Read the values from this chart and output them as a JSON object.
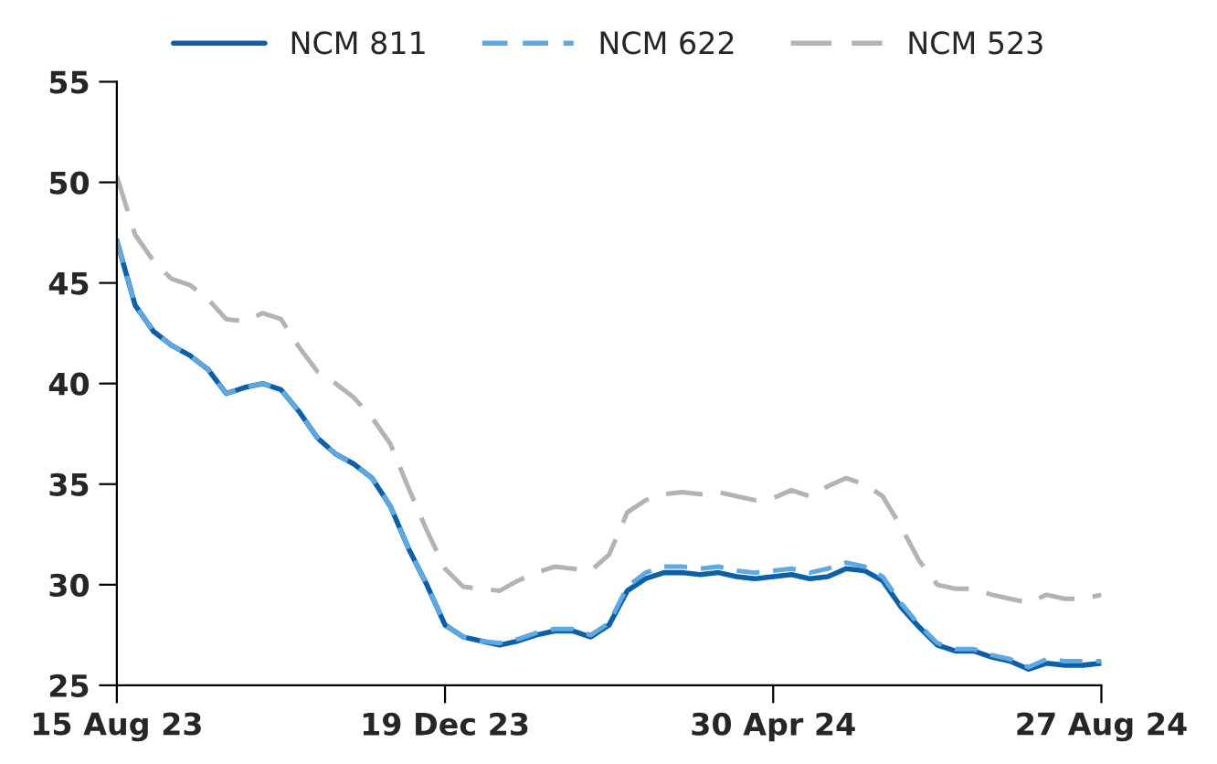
{
  "chart_data": {
    "type": "line",
    "categories": [
      "15 Aug 23",
      null,
      null,
      null,
      null,
      null,
      null,
      null,
      null,
      null,
      null,
      null,
      null,
      null,
      null,
      null,
      null,
      null,
      "19 Dec 23",
      null,
      null,
      null,
      null,
      null,
      null,
      null,
      null,
      null,
      null,
      null,
      null,
      null,
      null,
      null,
      null,
      null,
      "30 Apr 24",
      null,
      null,
      null,
      null,
      null,
      null,
      null,
      null,
      null,
      null,
      null,
      null,
      null,
      null,
      null,
      null,
      null,
      "27 Aug 24"
    ],
    "series": [
      {
        "name": "NCM 811",
        "color": "#0d5fa8",
        "line_style": "solid",
        "values": [
          47.1,
          43.9,
          42.6,
          41.9,
          41.4,
          40.7,
          39.5,
          39.8,
          40.0,
          39.7,
          38.6,
          37.3,
          36.5,
          36.0,
          35.3,
          33.9,
          31.8,
          30.0,
          28.0,
          27.4,
          27.2,
          27.0,
          27.2,
          27.5,
          27.7,
          27.7,
          27.4,
          28.0,
          29.7,
          30.3,
          30.6,
          30.6,
          30.5,
          30.6,
          30.4,
          30.3,
          30.4,
          30.5,
          30.3,
          30.4,
          30.8,
          30.7,
          30.2,
          28.9,
          27.9,
          27.0,
          26.7,
          26.7,
          26.4,
          26.2,
          25.8,
          26.1,
          26.0,
          26.0,
          26.1
        ]
      },
      {
        "name": "NCM 622",
        "color": "#5fa8e0",
        "line_style": "dashed",
        "values": [
          47.1,
          43.9,
          42.6,
          41.9,
          41.4,
          40.7,
          39.5,
          39.8,
          40.0,
          39.7,
          38.6,
          37.3,
          36.5,
          36.0,
          35.3,
          33.9,
          31.8,
          30.0,
          28.0,
          27.4,
          27.2,
          27.1,
          27.3,
          27.6,
          27.8,
          27.8,
          27.5,
          28.1,
          29.9,
          30.6,
          30.9,
          30.9,
          30.8,
          30.9,
          30.7,
          30.6,
          30.7,
          30.8,
          30.6,
          30.8,
          31.1,
          30.9,
          30.4,
          29.1,
          28.0,
          27.1,
          26.8,
          26.8,
          26.5,
          26.3,
          25.9,
          26.3,
          26.2,
          26.2,
          26.2
        ]
      },
      {
        "name": "NCM 523",
        "color": "#b3b3b3",
        "line_style": "dashed",
        "values": [
          50.3,
          47.4,
          46.1,
          45.2,
          44.9,
          44.2,
          43.2,
          43.1,
          43.5,
          43.2,
          41.8,
          40.6,
          40.0,
          39.3,
          38.3,
          37.0,
          34.8,
          32.7,
          30.8,
          29.9,
          29.8,
          29.7,
          30.2,
          30.6,
          30.9,
          30.8,
          30.7,
          31.5,
          33.6,
          34.2,
          34.5,
          34.6,
          34.5,
          34.6,
          34.4,
          34.2,
          34.3,
          34.7,
          34.4,
          34.9,
          35.3,
          35.0,
          34.4,
          32.9,
          31.2,
          30.0,
          29.8,
          29.8,
          29.5,
          29.3,
          29.1,
          29.5,
          29.3,
          29.3,
          29.5
        ]
      }
    ],
    "ylim": [
      25,
      55
    ],
    "yticks": [
      25,
      30,
      35,
      40,
      45,
      50,
      55
    ],
    "grid": false,
    "legend": "top",
    "marker": "none"
  }
}
